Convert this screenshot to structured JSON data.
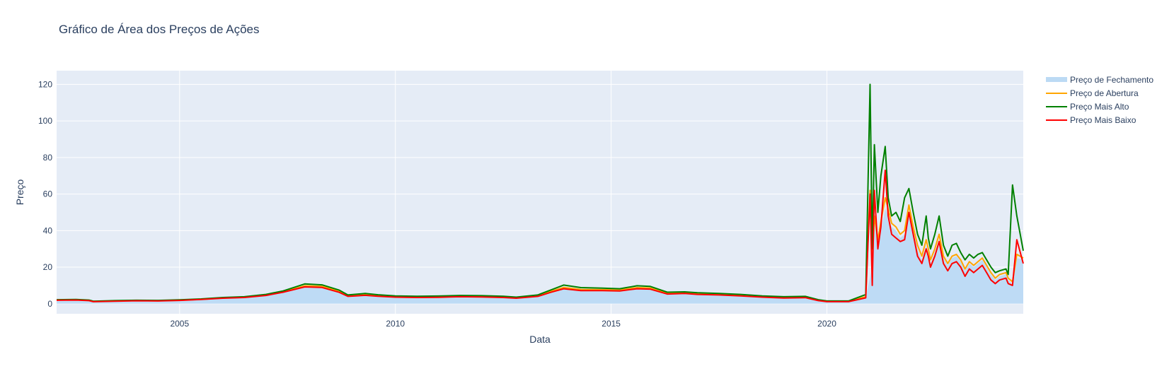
{
  "chart_data": {
    "type": "area",
    "title": "Gráfico de Área dos Preços de Ações",
    "xlabel": "Data",
    "ylabel": "Preço",
    "xlim": [
      2002.15,
      2024.55
    ],
    "ylim": [
      -5.5,
      127.5
    ],
    "x_ticks": [
      "2005",
      "2010",
      "2015",
      "2020"
    ],
    "y_ticks": [
      "0",
      "20",
      "40",
      "60",
      "80",
      "100",
      "120"
    ],
    "grid": true,
    "legend_position": "right",
    "series": [
      {
        "name": "Preço de Fechamento",
        "color": "#bcdaf4",
        "style": "area",
        "x": [
          2002.15,
          2002.6,
          2002.9,
          2003.0,
          2003.5,
          2004.0,
          2004.5,
          2005.0,
          2005.5,
          2006.0,
          2006.5,
          2007.0,
          2007.4,
          2007.9,
          2008.3,
          2008.7,
          2008.9,
          2009.3,
          2009.6,
          2010.0,
          2010.5,
          2011.0,
          2011.5,
          2012.0,
          2012.5,
          2012.8,
          2013.3,
          2013.6,
          2013.9,
          2014.3,
          2014.8,
          2015.2,
          2015.6,
          2015.9,
          2016.3,
          2016.7,
          2017.0,
          2017.5,
          2018.0,
          2018.5,
          2019.0,
          2019.5,
          2019.8,
          2020.0,
          2020.5,
          2020.9,
          2021.05,
          2021.1,
          2021.18,
          2021.25,
          2021.35,
          2021.42,
          2021.5,
          2021.6,
          2021.7,
          2021.8,
          2021.9,
          2022.0,
          2022.1,
          2022.2,
          2022.3,
          2022.35,
          2022.4,
          2022.5,
          2022.6,
          2022.7,
          2022.8,
          2022.9,
          2023.0,
          2023.1,
          2023.2,
          2023.3,
          2023.4,
          2023.5,
          2023.6,
          2023.7,
          2023.8,
          2023.9,
          2024.0,
          2024.15,
          2024.2,
          2024.3,
          2024.4,
          2024.55
        ],
        "y": [
          2,
          2.1,
          1.8,
          1.2,
          1.5,
          1.7,
          1.6,
          1.9,
          2.4,
          3.1,
          3.5,
          4.7,
          6.5,
          9.5,
          9.2,
          6.5,
          4.2,
          4.8,
          4.3,
          3.8,
          3.6,
          3.7,
          4.0,
          3.9,
          3.6,
          3.2,
          4.2,
          6.5,
          8.5,
          7.5,
          7.5,
          7.3,
          8.5,
          8.3,
          5.5,
          5.8,
          5.3,
          5.0,
          4.5,
          3.8,
          3.3,
          3.5,
          1.8,
          1.2,
          1.2,
          3.5,
          20,
          45,
          33,
          40,
          52,
          48,
          42,
          40,
          36,
          38,
          50,
          40,
          30,
          24,
          32,
          28,
          22,
          28,
          35,
          25,
          21,
          25,
          26,
          23,
          18,
          22,
          20,
          22,
          24,
          20,
          16,
          13,
          15,
          16,
          13,
          11,
          25,
          24
        ]
      },
      {
        "name": "Preço de Abertura",
        "color": "#ffa500",
        "style": "line",
        "x": [
          2002.15,
          2002.6,
          2002.9,
          2003.0,
          2003.5,
          2004.0,
          2004.5,
          2005.0,
          2005.5,
          2006.0,
          2006.5,
          2007.0,
          2007.4,
          2007.9,
          2008.3,
          2008.7,
          2008.9,
          2009.3,
          2009.6,
          2010.0,
          2010.5,
          2011.0,
          2011.5,
          2012.0,
          2012.5,
          2012.8,
          2013.3,
          2013.6,
          2013.9,
          2014.3,
          2014.8,
          2015.2,
          2015.6,
          2015.9,
          2016.3,
          2016.7,
          2017.0,
          2017.5,
          2018.0,
          2018.5,
          2019.0,
          2019.5,
          2019.8,
          2020.0,
          2020.5,
          2020.9,
          2021.0,
          2021.05,
          2021.1,
          2021.18,
          2021.25,
          2021.35,
          2021.42,
          2021.5,
          2021.6,
          2021.7,
          2021.8,
          2021.9,
          2022.0,
          2022.1,
          2022.2,
          2022.3,
          2022.35,
          2022.4,
          2022.5,
          2022.6,
          2022.7,
          2022.8,
          2022.9,
          2023.0,
          2023.1,
          2023.2,
          2023.3,
          2023.4,
          2023.5,
          2023.6,
          2023.7,
          2023.8,
          2023.9,
          2024.0,
          2024.15,
          2024.2,
          2024.3,
          2024.4,
          2024.55
        ],
        "y": [
          2,
          2.1,
          1.8,
          1.2,
          1.5,
          1.7,
          1.6,
          1.9,
          2.4,
          3.1,
          3.5,
          4.7,
          6.5,
          9.8,
          9.5,
          6.8,
          4.3,
          5.0,
          4.4,
          3.9,
          3.7,
          3.8,
          4.1,
          4.0,
          3.7,
          3.3,
          4.3,
          6.8,
          8.9,
          7.8,
          7.7,
          7.5,
          8.8,
          8.6,
          5.7,
          6.0,
          5.5,
          5.1,
          4.6,
          3.9,
          3.4,
          3.6,
          1.9,
          1.3,
          1.3,
          3.8,
          62,
          22,
          48,
          35,
          45,
          58,
          52,
          44,
          42,
          38,
          40,
          54,
          42,
          32,
          26,
          35,
          30,
          24,
          30,
          38,
          26,
          22,
          26,
          27,
          24,
          19,
          23,
          21,
          23,
          25,
          21,
          17,
          14,
          16,
          17,
          14,
          12,
          27,
          25
        ]
      },
      {
        "name": "Preço Mais Alto",
        "color": "#008000",
        "style": "line",
        "x": [
          2002.15,
          2002.6,
          2002.9,
          2003.0,
          2003.5,
          2004.0,
          2004.5,
          2005.0,
          2005.5,
          2006.0,
          2006.5,
          2007.0,
          2007.4,
          2007.9,
          2008.3,
          2008.7,
          2008.9,
          2009.3,
          2009.6,
          2010.0,
          2010.5,
          2011.0,
          2011.5,
          2012.0,
          2012.5,
          2012.8,
          2013.3,
          2013.6,
          2013.9,
          2014.3,
          2014.8,
          2015.2,
          2015.6,
          2015.9,
          2016.3,
          2016.7,
          2017.0,
          2017.5,
          2018.0,
          2018.5,
          2019.0,
          2019.5,
          2019.8,
          2020.0,
          2020.5,
          2020.9,
          2021.0,
          2021.05,
          2021.1,
          2021.18,
          2021.25,
          2021.35,
          2021.42,
          2021.5,
          2021.6,
          2021.7,
          2021.8,
          2021.9,
          2022.0,
          2022.1,
          2022.2,
          2022.3,
          2022.35,
          2022.4,
          2022.5,
          2022.6,
          2022.7,
          2022.8,
          2022.9,
          2023.0,
          2023.1,
          2023.2,
          2023.3,
          2023.4,
          2023.5,
          2023.6,
          2023.7,
          2023.8,
          2023.9,
          2024.0,
          2024.15,
          2024.2,
          2024.3,
          2024.4,
          2024.55
        ],
        "y": [
          2.2,
          2.3,
          2.0,
          1.4,
          1.7,
          1.9,
          1.8,
          2.1,
          2.6,
          3.4,
          3.8,
          5.1,
          7.0,
          10.8,
          10.3,
          7.4,
          4.8,
          5.6,
          4.9,
          4.3,
          4.1,
          4.2,
          4.5,
          4.4,
          4.1,
          3.6,
          4.8,
          7.5,
          10.2,
          8.8,
          8.5,
          8.2,
          9.8,
          9.5,
          6.3,
          6.5,
          6.0,
          5.6,
          5.1,
          4.3,
          3.8,
          4.0,
          2.2,
          1.5,
          1.5,
          5.0,
          120,
          30,
          87,
          50,
          70,
          86,
          58,
          48,
          50,
          45,
          58,
          63,
          50,
          38,
          32,
          48,
          36,
          30,
          38,
          48,
          32,
          26,
          32,
          33,
          28,
          24,
          27,
          25,
          27,
          28,
          24,
          20,
          17,
          18,
          19,
          16,
          65,
          48,
          29
        ]
      },
      {
        "name": "Preço Mais Baixo",
        "color": "#ff0000",
        "style": "line",
        "x": [
          2002.15,
          2002.6,
          2002.9,
          2003.0,
          2003.5,
          2004.0,
          2004.5,
          2005.0,
          2005.5,
          2006.0,
          2006.5,
          2007.0,
          2007.4,
          2007.9,
          2008.3,
          2008.7,
          2008.9,
          2009.3,
          2009.6,
          2010.0,
          2010.5,
          2011.0,
          2011.5,
          2012.0,
          2012.5,
          2012.8,
          2013.3,
          2013.6,
          2013.9,
          2014.3,
          2014.8,
          2015.2,
          2015.6,
          2015.9,
          2016.3,
          2016.7,
          2017.0,
          2017.5,
          2018.0,
          2018.5,
          2019.0,
          2019.5,
          2019.8,
          2020.0,
          2020.5,
          2020.9,
          2021.0,
          2021.05,
          2021.1,
          2021.18,
          2021.25,
          2021.35,
          2021.42,
          2021.5,
          2021.6,
          2021.7,
          2021.8,
          2021.9,
          2022.0,
          2022.1,
          2022.2,
          2022.3,
          2022.35,
          2022.4,
          2022.5,
          2022.6,
          2022.7,
          2022.8,
          2022.9,
          2023.0,
          2023.1,
          2023.2,
          2023.3,
          2023.4,
          2023.5,
          2023.6,
          2023.7,
          2023.8,
          2023.9,
          2024.0,
          2024.15,
          2024.2,
          2024.3,
          2024.4,
          2024.55
        ],
        "y": [
          1.9,
          2.0,
          1.7,
          1.1,
          1.4,
          1.6,
          1.5,
          1.8,
          2.3,
          3.0,
          3.4,
          4.5,
          6.3,
          9.2,
          8.9,
          6.2,
          4.0,
          4.6,
          4.1,
          3.6,
          3.4,
          3.5,
          3.8,
          3.7,
          3.4,
          3.0,
          4.0,
          6.2,
          8.2,
          7.2,
          7.2,
          7.0,
          8.2,
          8.0,
          5.3,
          5.6,
          5.1,
          4.8,
          4.3,
          3.6,
          3.1,
          3.3,
          1.7,
          1.1,
          1.1,
          3.2,
          60,
          10,
          62,
          30,
          42,
          73,
          48,
          38,
          36,
          34,
          35,
          50,
          38,
          26,
          22,
          30,
          26,
          20,
          26,
          34,
          22,
          18,
          22,
          23,
          20,
          15,
          19,
          17,
          19,
          21,
          17,
          13,
          11,
          13,
          14,
          11,
          10,
          35,
          22
        ]
      }
    ]
  }
}
